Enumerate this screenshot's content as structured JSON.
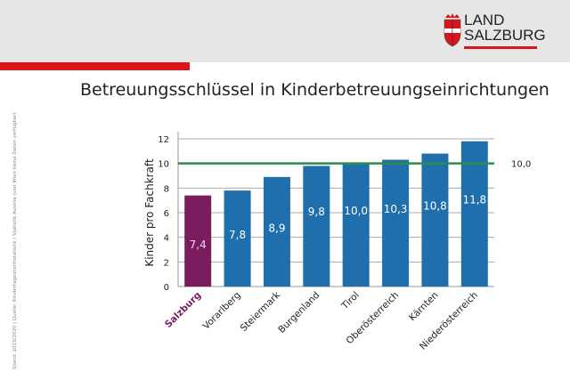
{
  "logo": {
    "line1": "LAND",
    "line2": "SALZBURG"
  },
  "title": "Betreuungsschlüssel in Kinderbetreuungseinrichtungen",
  "footnote": "Stand: 2019/2020 | Quelle: Kindertagesheimstatistik / Statistik Austria (von Wien keine Daten verfügbar)",
  "colors": {
    "header": "#e6e6e6",
    "accent_red": "#d9141b",
    "highlight_bar": "#7b1c5e",
    "bar": "#1f6fad",
    "reference_line": "#2e8b4a"
  },
  "chart_data": {
    "type": "bar",
    "title": "",
    "ylabel": "Kinder pro Fachkraft",
    "xlabel": "",
    "ylim": [
      0,
      12
    ],
    "yticks": [
      0,
      2,
      4,
      6,
      8,
      10,
      12
    ],
    "grid": true,
    "categories": [
      "Salzburg",
      "Vorarlberg",
      "Steiermark",
      "Burgenland",
      "Tirol",
      "Oberösterreich",
      "Kärnten",
      "Niederösterreich"
    ],
    "values": [
      7.4,
      7.8,
      8.9,
      9.8,
      10.0,
      10.3,
      10.8,
      11.8
    ],
    "value_labels": [
      "7,4",
      "7,8",
      "8,9",
      "9,8",
      "10,0",
      "10,3",
      "10,8",
      "11,8"
    ],
    "highlight": "Salzburg",
    "reference_line": {
      "value": 10.0,
      "label": "10,0"
    }
  }
}
